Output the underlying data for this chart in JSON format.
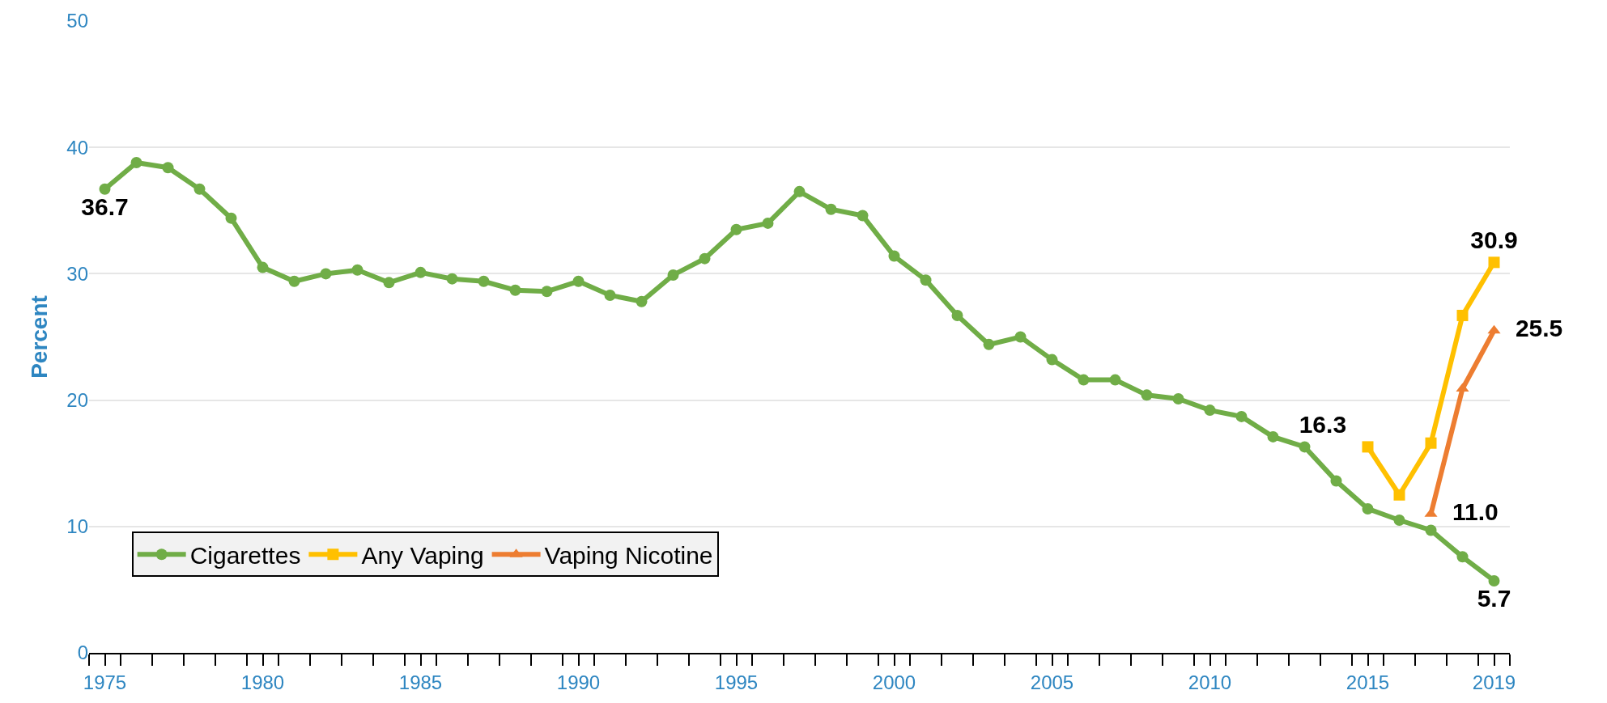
{
  "chart_data": {
    "type": "line",
    "ylabel": "Percent",
    "x": [
      1975,
      1976,
      1977,
      1978,
      1979,
      1980,
      1981,
      1982,
      1983,
      1984,
      1985,
      1986,
      1987,
      1988,
      1989,
      1990,
      1991,
      1992,
      1993,
      1994,
      1995,
      1996,
      1997,
      1998,
      1999,
      2000,
      2001,
      2002,
      2003,
      2004,
      2005,
      2006,
      2007,
      2008,
      2009,
      2010,
      2011,
      2012,
      2013,
      2014,
      2015,
      2016,
      2017,
      2018,
      2019
    ],
    "series": [
      {
        "name": "Cigarettes",
        "color": "#70ad47",
        "marker": "circle",
        "values": [
          36.7,
          38.8,
          38.4,
          36.7,
          34.4,
          30.5,
          29.4,
          30.0,
          30.3,
          29.3,
          30.1,
          29.6,
          29.4,
          28.7,
          28.6,
          29.4,
          28.3,
          27.8,
          29.9,
          31.2,
          33.5,
          34.0,
          36.5,
          35.1,
          34.6,
          31.4,
          29.5,
          26.7,
          24.4,
          25.0,
          23.2,
          21.6,
          21.6,
          20.4,
          20.1,
          19.2,
          18.7,
          17.1,
          16.3,
          13.6,
          11.4,
          10.5,
          9.7,
          7.6,
          5.7
        ],
        "value_labels": [
          "36.7",
          null,
          null,
          null,
          null,
          null,
          null,
          null,
          null,
          null,
          null,
          null,
          null,
          null,
          null,
          null,
          null,
          null,
          null,
          null,
          null,
          null,
          null,
          null,
          null,
          null,
          null,
          null,
          null,
          null,
          null,
          null,
          null,
          null,
          null,
          null,
          null,
          null,
          null,
          null,
          null,
          null,
          null,
          null,
          "5.7"
        ]
      },
      {
        "name": "Any Vaping",
        "color": "#ffc000",
        "marker": "square",
        "x": [
          2015,
          2016,
          2017,
          2018,
          2019
        ],
        "values": [
          16.3,
          12.5,
          16.6,
          26.7,
          30.9
        ],
        "value_labels": [
          "16.3",
          null,
          null,
          null,
          "30.9"
        ]
      },
      {
        "name": "Vaping Nicotine",
        "color": "#ed7d31",
        "marker": "triangle",
        "x": [
          2017,
          2018,
          2019
        ],
        "values": [
          11.0,
          20.9,
          25.5
        ],
        "value_labels": [
          "11.0",
          null,
          "25.5"
        ]
      }
    ],
    "xlim": [
      1974.5,
      2019.5
    ],
    "xticks": [
      1975,
      1980,
      1985,
      1990,
      1995,
      2000,
      2005,
      2010,
      2015,
      2019
    ],
    "ylim": [
      0,
      50
    ],
    "yticks": [
      0,
      10,
      20,
      30,
      40,
      50
    ],
    "grid": "y",
    "legend": "bottom left",
    "line_style": "solid"
  }
}
